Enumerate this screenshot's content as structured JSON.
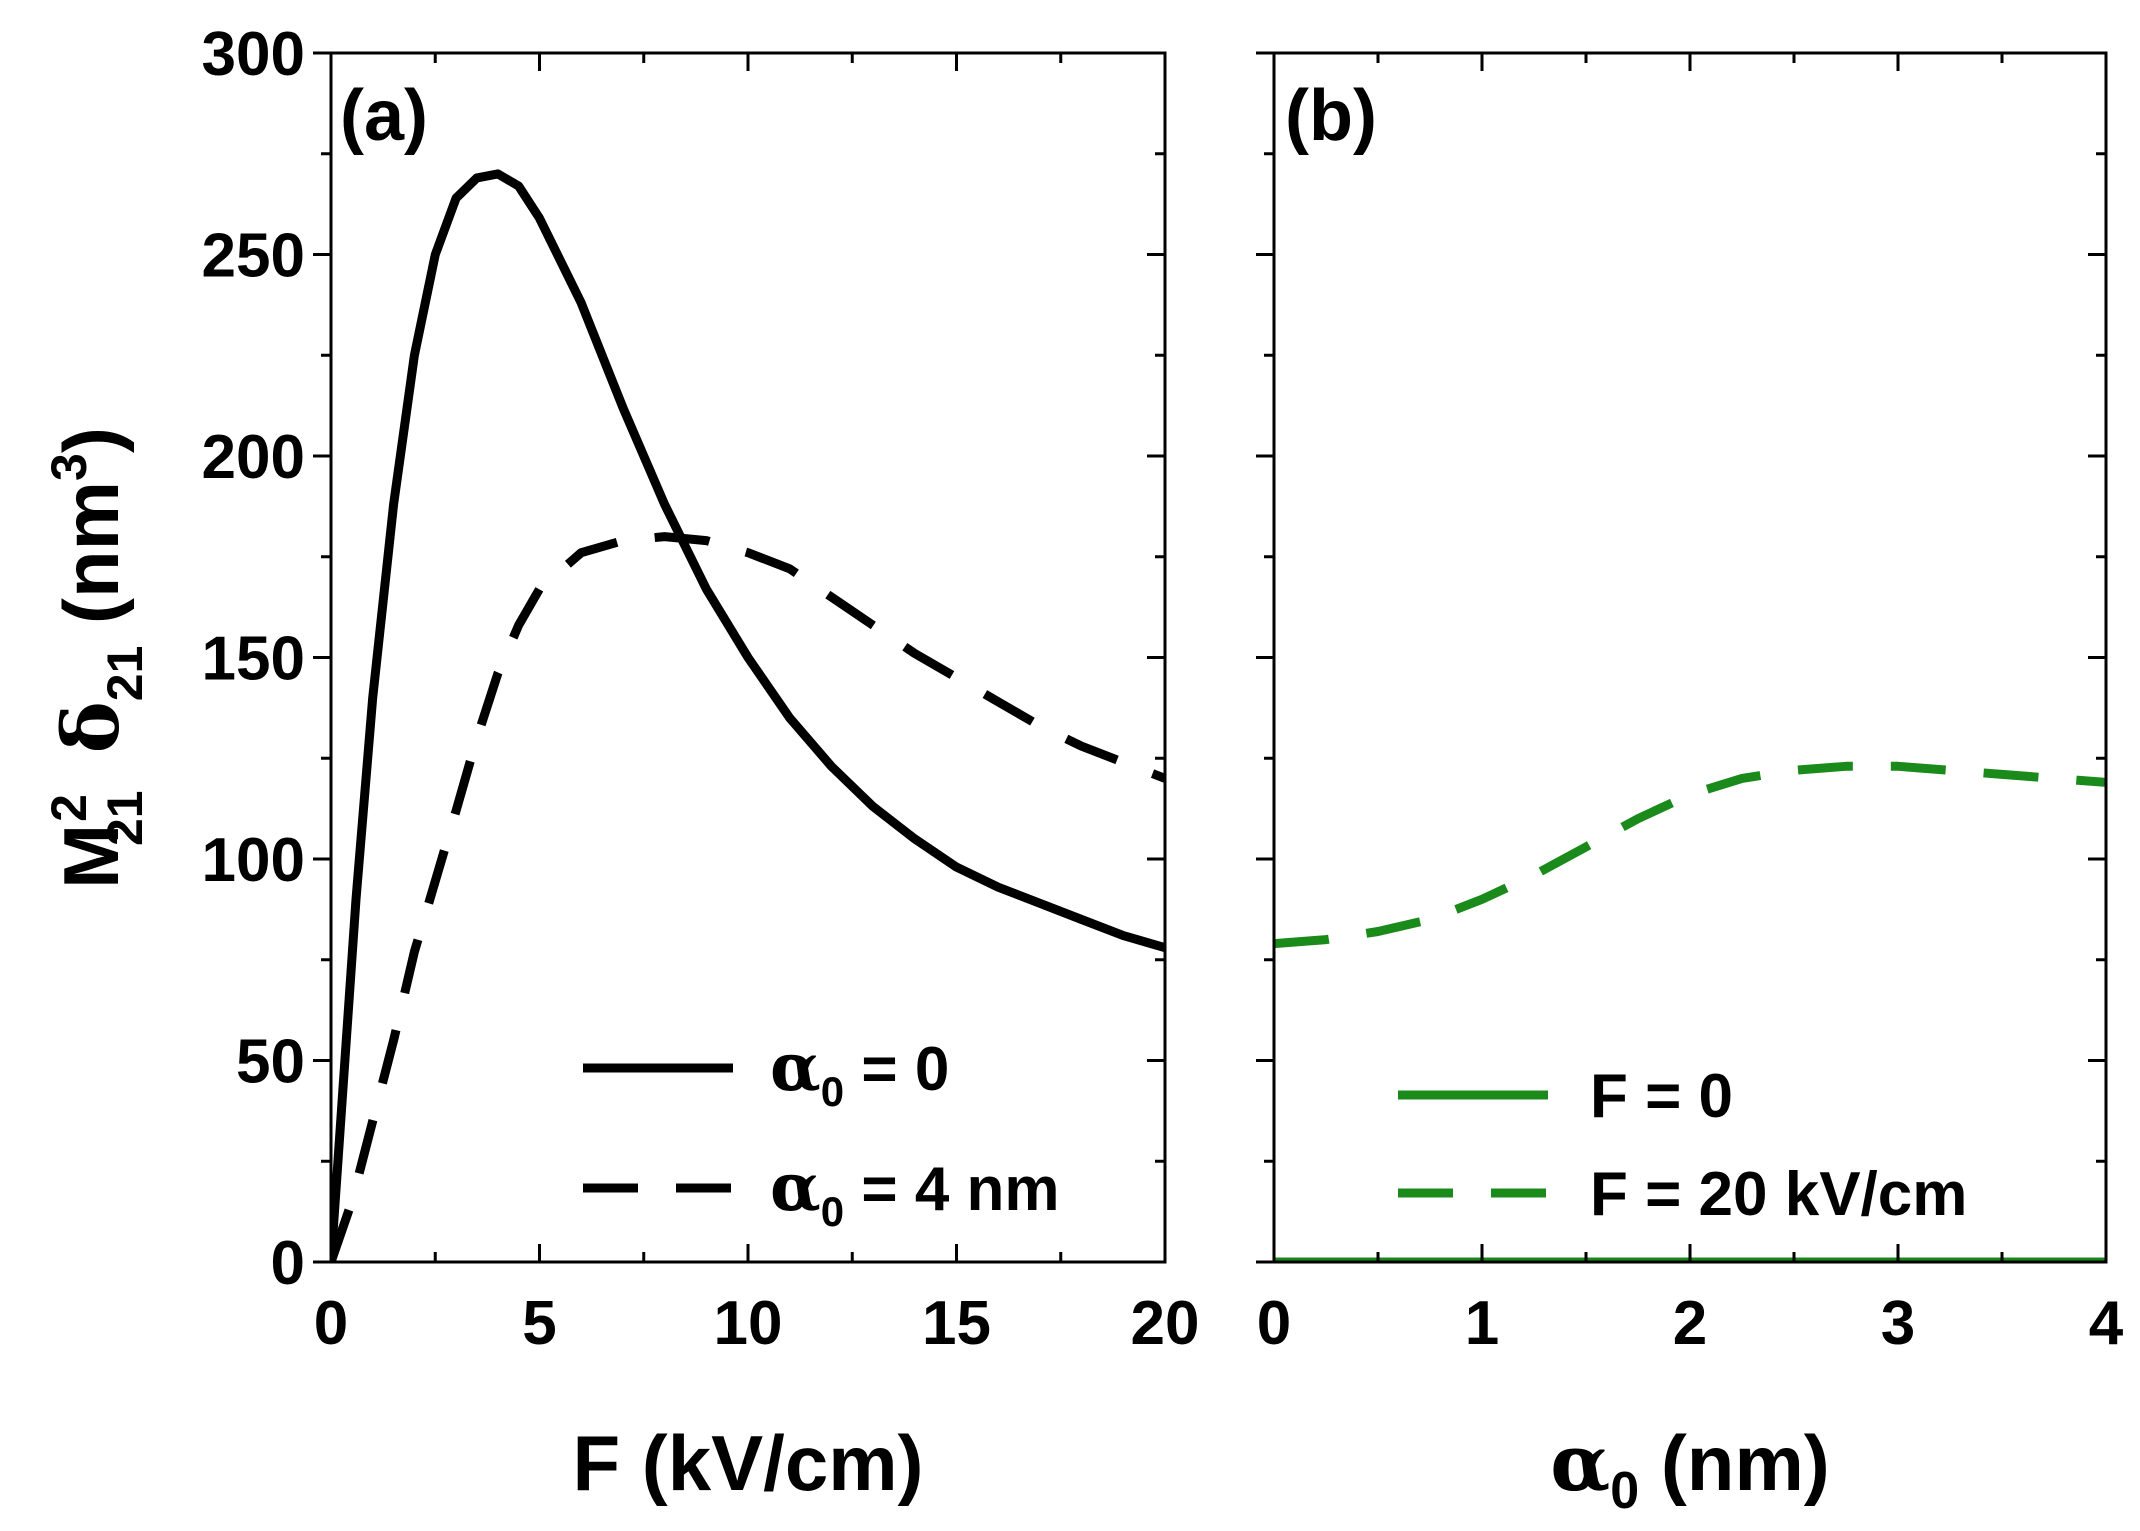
{
  "colors": {
    "black": "#000000",
    "green": "#1a8a1a"
  },
  "chart_data": [
    {
      "panel_label": "(a)",
      "type": "line",
      "xlabel": "F (kV/cm)",
      "ylabel": {
        "base": "M",
        "sup": "2",
        "sub": "21",
        "symbol": "δ",
        "symbol_sub": "21",
        "unit_open": " (nm",
        "unit_sup": "3",
        "unit_close": ")"
      },
      "xlim": [
        0,
        20
      ],
      "ylim": [
        0,
        300
      ],
      "xticks": [
        "0",
        "5",
        "10",
        "15",
        "20"
      ],
      "xtick_values": [
        0,
        5,
        10,
        15,
        20
      ],
      "yticks": [
        "0",
        "50",
        "100",
        "150",
        "200",
        "250",
        "300"
      ],
      "ytick_values": [
        0,
        50,
        100,
        150,
        200,
        250,
        300
      ],
      "legend_position": "bottom-right",
      "series": [
        {
          "name": "α0 = 0",
          "legend": {
            "sym": "α",
            "sub": "0",
            "rest": " = 0"
          },
          "style": "solid",
          "color": "#000000",
          "x": [
            0,
            0.3,
            0.6,
            1,
            1.5,
            2,
            2.5,
            3,
            3.5,
            4,
            4.5,
            5,
            6,
            7,
            8,
            9,
            10,
            11,
            12,
            13,
            14,
            15,
            16,
            17,
            18,
            19,
            20
          ],
          "y": [
            0,
            45,
            90,
            140,
            188,
            225,
            250,
            264,
            269,
            270,
            267,
            259,
            238,
            212,
            188,
            167,
            150,
            135,
            123,
            113,
            105,
            98,
            93,
            89,
            85,
            81,
            78
          ]
        },
        {
          "name": "α0 = 4 nm",
          "legend": {
            "sym": "α",
            "sub": "0",
            "rest": " = 4 nm"
          },
          "style": "dashed",
          "color": "#000000",
          "x": [
            0,
            0.5,
            1,
            1.5,
            2,
            3,
            3.5,
            4,
            4.5,
            5,
            6,
            7,
            8,
            9,
            10,
            11,
            12,
            13,
            14,
            15,
            16,
            17,
            18,
            19,
            20
          ],
          "y": [
            0,
            15,
            35,
            55,
            77,
            112,
            130,
            146,
            158,
            167,
            176,
            179,
            180,
            179,
            176,
            172,
            165,
            158,
            151,
            145,
            139,
            133,
            128,
            124,
            120
          ]
        }
      ]
    },
    {
      "panel_label": "(b)",
      "type": "line",
      "xlabel": {
        "sym": "α",
        "sub": "0",
        "rest": " (nm)"
      },
      "xlim": [
        0,
        4
      ],
      "ylim": [
        0,
        300
      ],
      "xticks": [
        "0",
        "1",
        "2",
        "3",
        "4"
      ],
      "xtick_values": [
        0,
        1,
        2,
        3,
        4
      ],
      "yticks": [],
      "ytick_values": [
        0,
        50,
        100,
        150,
        200,
        250,
        300
      ],
      "legend_position": "bottom-right",
      "series": [
        {
          "name": "F = 0",
          "legend": {
            "text": "F = 0"
          },
          "style": "solid",
          "color": "#1a8a1a",
          "x": [
            0,
            0.5,
            1,
            1.5,
            2,
            2.5,
            3,
            3.5,
            4
          ],
          "y": [
            0,
            0,
            0,
            0,
            0,
            0,
            0,
            0,
            0
          ]
        },
        {
          "name": "F = 20 kV/cm",
          "legend": {
            "text": "F = 20 kV/cm"
          },
          "style": "dashed",
          "color": "#1a8a1a",
          "x": [
            0,
            0.25,
            0.5,
            0.75,
            1,
            1.25,
            1.5,
            1.75,
            2,
            2.25,
            2.5,
            2.75,
            3,
            3.25,
            3.5,
            3.75,
            4
          ],
          "y": [
            79,
            80,
            82,
            85,
            90,
            96,
            103,
            110,
            116,
            120,
            122,
            123,
            123,
            122,
            121,
            120,
            119
          ]
        }
      ]
    }
  ]
}
